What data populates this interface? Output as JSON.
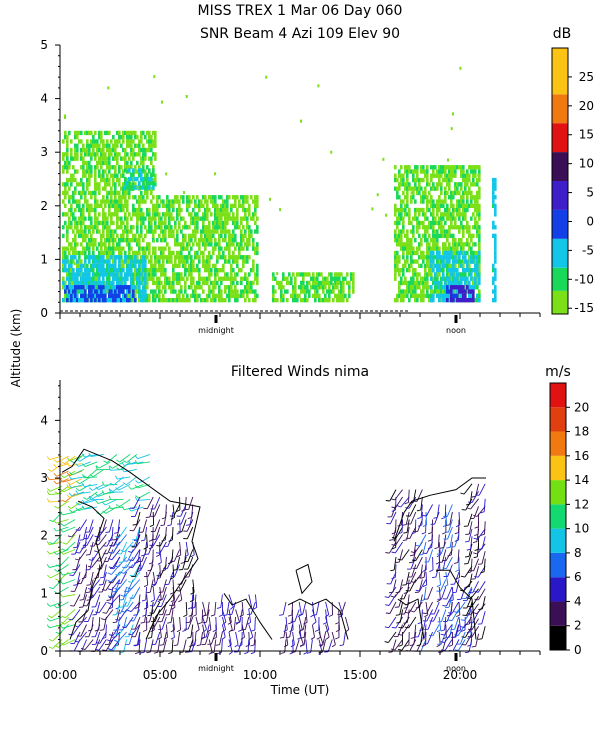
{
  "chart_data": [
    {
      "type": "heatmap",
      "title": "MISS TREX    1 Mar 06 Day 060",
      "subtitle": "SNR Beam 4 Azi 109 Elev 90",
      "ylabel": "Altitude (km)",
      "ylim": [
        0,
        5
      ],
      "y_ticks": [
        0,
        1,
        2,
        3,
        4,
        5
      ],
      "xlim": [
        0,
        24
      ],
      "markers": [
        {
          "label": "midnight",
          "x": 7.8
        },
        {
          "label": "noon",
          "x": 19.8
        }
      ],
      "colorbar": {
        "unit": "dB",
        "ticks": [
          -15,
          -10,
          -5,
          0,
          5,
          10,
          15,
          20,
          25
        ],
        "range": [
          -16,
          30
        ],
        "stops": [
          {
            "from": -16,
            "to": -12,
            "color": "#7ce019"
          },
          {
            "from": -12,
            "to": -8,
            "color": "#1ad85a"
          },
          {
            "from": -8,
            "to": -3,
            "color": "#12c6e8"
          },
          {
            "from": -3,
            "to": 2,
            "color": "#1240e6"
          },
          {
            "from": 2,
            "to": 7,
            "color": "#3d1ec8"
          },
          {
            "from": 7,
            "to": 12,
            "color": "#3b0f55"
          },
          {
            "from": 12,
            "to": 17,
            "color": "#e01212"
          },
          {
            "from": 17,
            "to": 22,
            "color": "#f07a10"
          },
          {
            "from": 22,
            "to": 30,
            "color": "#fbc414"
          }
        ]
      },
      "regions": [
        {
          "x0": 0.1,
          "x1": 4.7,
          "y0": 0.2,
          "y1": 3.4,
          "level": -13
        },
        {
          "x0": 0.1,
          "x1": 4.3,
          "y0": 0.2,
          "y1": 1.0,
          "level": -6
        },
        {
          "x0": 0.2,
          "x1": 3.8,
          "y0": 0.2,
          "y1": 0.5,
          "level": -1
        },
        {
          "x0": 3.2,
          "x1": 4.6,
          "y0": 2.3,
          "y1": 2.7,
          "level": -8
        },
        {
          "x0": 4.8,
          "x1": 9.8,
          "y0": 0.2,
          "y1": 2.2,
          "level": -13
        },
        {
          "x0": 10.6,
          "x1": 14.6,
          "y0": 0.2,
          "y1": 0.7,
          "level": -13
        },
        {
          "x0": 16.7,
          "x1": 21.0,
          "y0": 0.2,
          "y1": 2.7,
          "level": -13
        },
        {
          "x0": 18.5,
          "x1": 21.0,
          "y0": 0.2,
          "y1": 1.1,
          "level": -6
        },
        {
          "x0": 19.3,
          "x1": 20.7,
          "y0": 0.2,
          "y1": 0.5,
          "level": 4
        },
        {
          "x0": 21.6,
          "x1": 21.8,
          "y0": 0.2,
          "y1": 2.5,
          "level": -6
        }
      ]
    },
    {
      "type": "scatter",
      "title": "Filtered Winds nima",
      "xlabel": "Time (UT)",
      "ylabel": "Altitude (km)",
      "ylim": [
        0,
        4.7
      ],
      "y_ticks": [
        0,
        1,
        2,
        3,
        4
      ],
      "xlim": [
        0,
        24
      ],
      "x_ticks": [
        {
          "label": "00:00",
          "x": 0
        },
        {
          "label": "05:00",
          "x": 5
        },
        {
          "label": "10:00",
          "x": 10
        },
        {
          "label": "15:00",
          "x": 15
        },
        {
          "label": "20:00",
          "x": 20
        }
      ],
      "markers": [
        {
          "label": "midnight",
          "x": 7.8
        },
        {
          "label": "noon",
          "x": 19.8
        }
      ],
      "colorbar": {
        "unit": "m/s",
        "ticks": [
          0,
          2,
          4,
          6,
          8,
          10,
          12,
          14,
          16,
          18,
          20
        ],
        "range": [
          0,
          22
        ],
        "colors": [
          "#000000",
          "#3b0f55",
          "#2a18c8",
          "#1a68f0",
          "#14c4e6",
          "#14d870",
          "#74e014",
          "#fbc414",
          "#f07a10",
          "#e04010",
          "#e01212"
        ]
      },
      "wind_regions": [
        {
          "x0": 0.1,
          "x1": 1.2,
          "y0": 2.6,
          "y1": 3.4,
          "speed": 15,
          "dir": 250
        },
        {
          "x0": 0.1,
          "x1": 1.0,
          "y0": 0.2,
          "y1": 2.5,
          "speed": 12,
          "dir": 240
        },
        {
          "x0": 1.2,
          "x1": 4.8,
          "y0": 2.5,
          "y1": 3.5,
          "speed": 10,
          "dir": 250
        },
        {
          "x0": 1.0,
          "x1": 3.0,
          "y0": 0.2,
          "y1": 2.4,
          "speed": 4,
          "dir": 200
        },
        {
          "x0": 3.0,
          "x1": 4.0,
          "y0": 0.2,
          "y1": 2.2,
          "speed": 7,
          "dir": 210
        },
        {
          "x0": 4.0,
          "x1": 6.8,
          "y0": 0.2,
          "y1": 2.7,
          "speed": 3,
          "dir": 190
        },
        {
          "x0": 6.8,
          "x1": 10.0,
          "y0": 0.2,
          "y1": 1.1,
          "speed": 4,
          "dir": 180
        },
        {
          "x0": 11.3,
          "x1": 14.3,
          "y0": 0.2,
          "y1": 0.9,
          "speed": 4,
          "dir": 180
        },
        {
          "x0": 16.8,
          "x1": 18.3,
          "y0": 0.2,
          "y1": 2.8,
          "speed": 3,
          "dir": 200
        },
        {
          "x0": 18.3,
          "x1": 20.0,
          "y0": 0.2,
          "y1": 2.6,
          "speed": 5,
          "dir": 190
        },
        {
          "x0": 19.6,
          "x1": 20.6,
          "y0": 0.2,
          "y1": 1.2,
          "speed": 6,
          "dir": 200
        },
        {
          "x0": 20.6,
          "x1": 21.3,
          "y0": 0.3,
          "y1": 3.0,
          "speed": 3,
          "dir": 200
        }
      ]
    }
  ]
}
